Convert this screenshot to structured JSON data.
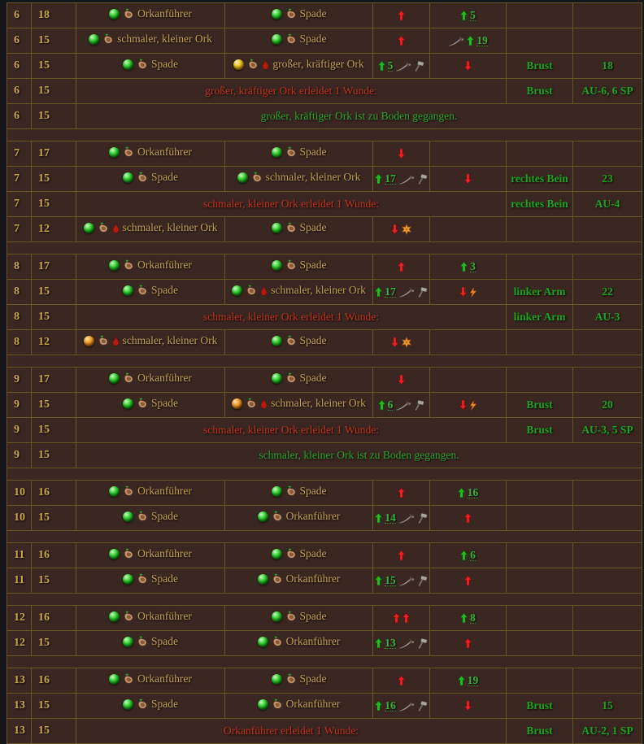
{
  "colors": {
    "page_background": "#14181b",
    "table_background": "#3b2722",
    "grid_border": "#6a5624",
    "gold_text": "#c9a647",
    "red_text": "#c23220",
    "green_text": "#1da51d",
    "roll_number_green": "#36b336"
  },
  "rows": [
    {
      "type": "action",
      "rnd": "6",
      "ini": "18",
      "actor": {
        "orb": "green",
        "wounded": false,
        "name": "Orkanführer"
      },
      "target": {
        "orb": "green",
        "wounded": false,
        "name": "Spade"
      },
      "c5": [
        {
          "icon": "red-up-arrow"
        }
      ],
      "c6": [
        {
          "icon": "green-up-arrow"
        },
        {
          "num": "5"
        }
      ],
      "zone": "",
      "res": ""
    },
    {
      "type": "action",
      "rnd": "6",
      "ini": "15",
      "actor": {
        "orb": "green",
        "wounded": false,
        "name": "schmaler, kleiner Ork"
      },
      "target": {
        "orb": "green",
        "wounded": false,
        "name": "Spade"
      },
      "c5": [
        {
          "icon": "red-up-arrow"
        }
      ],
      "c6": [
        {
          "icon": "sword"
        },
        {
          "icon": "green-up-arrow"
        },
        {
          "num": "19"
        }
      ],
      "zone": "",
      "res": ""
    },
    {
      "type": "action",
      "rnd": "6",
      "ini": "15",
      "actor": {
        "orb": "green",
        "wounded": false,
        "name": "Spade"
      },
      "target": {
        "orb": "yellow",
        "wounded": true,
        "name": "großer, kräftiger Ork"
      },
      "c5": [
        {
          "icon": "green-up-arrow"
        },
        {
          "num": "5"
        },
        {
          "icon": "sword"
        },
        {
          "icon": "hammer"
        }
      ],
      "c6": [
        {
          "icon": "red-down-arrow"
        }
      ],
      "zone": "Brust",
      "res": "18"
    },
    {
      "type": "wound",
      "rnd": "6",
      "ini": "15",
      "text": "großer, kräftiger Ork erleidet 1 Wunde:",
      "zone": "Brust",
      "res": "AU-6, 6 SP"
    },
    {
      "type": "info",
      "rnd": "6",
      "ini": "15",
      "text": "großer, kräftiger Ork ist zu Boden gegangen."
    },
    {
      "type": "gap"
    },
    {
      "type": "action",
      "rnd": "7",
      "ini": "17",
      "actor": {
        "orb": "green",
        "wounded": false,
        "name": "Orkanführer"
      },
      "target": {
        "orb": "green",
        "wounded": false,
        "name": "Spade"
      },
      "c5": [
        {
          "icon": "red-down-arrow"
        }
      ],
      "c6": [],
      "zone": "",
      "res": ""
    },
    {
      "type": "action",
      "rnd": "7",
      "ini": "15",
      "actor": {
        "orb": "green",
        "wounded": false,
        "name": "Spade"
      },
      "target": {
        "orb": "green",
        "wounded": false,
        "name": "schmaler, kleiner Ork"
      },
      "c5": [
        {
          "icon": "green-up-arrow"
        },
        {
          "num": "17"
        },
        {
          "icon": "sword"
        },
        {
          "icon": "hammer"
        }
      ],
      "c6": [
        {
          "icon": "red-down-arrow"
        }
      ],
      "zone": "rechtes Bein",
      "res": "23"
    },
    {
      "type": "wound",
      "rnd": "7",
      "ini": "15",
      "text": "schmaler, kleiner Ork erleidet 1 Wunde:",
      "zone": "rechtes Bein",
      "res": "AU-4"
    },
    {
      "type": "action",
      "rnd": "7",
      "ini": "12",
      "actor": {
        "orb": "green",
        "wounded": true,
        "name": "schmaler, kleiner Ork"
      },
      "target": {
        "orb": "green",
        "wounded": false,
        "name": "Spade"
      },
      "c5": [
        {
          "icon": "red-down-arrow"
        },
        {
          "icon": "fumble-star"
        }
      ],
      "c6": [],
      "zone": "",
      "res": ""
    },
    {
      "type": "gap"
    },
    {
      "type": "action",
      "rnd": "8",
      "ini": "17",
      "actor": {
        "orb": "green",
        "wounded": false,
        "name": "Orkanführer"
      },
      "target": {
        "orb": "green",
        "wounded": false,
        "name": "Spade"
      },
      "c5": [
        {
          "icon": "red-up-arrow"
        }
      ],
      "c6": [
        {
          "icon": "green-up-arrow"
        },
        {
          "num": "3"
        }
      ],
      "zone": "",
      "res": ""
    },
    {
      "type": "action",
      "rnd": "8",
      "ini": "15",
      "actor": {
        "orb": "green",
        "wounded": false,
        "name": "Spade"
      },
      "target": {
        "orb": "green",
        "wounded": true,
        "name": "schmaler, kleiner Ork"
      },
      "c5": [
        {
          "icon": "green-up-arrow"
        },
        {
          "num": "17"
        },
        {
          "icon": "sword"
        },
        {
          "icon": "hammer"
        }
      ],
      "c6": [
        {
          "icon": "red-down-arrow"
        },
        {
          "icon": "lightning"
        }
      ],
      "zone": "linker Arm",
      "res": "22"
    },
    {
      "type": "wound",
      "rnd": "8",
      "ini": "15",
      "text": "schmaler, kleiner Ork erleidet 1 Wunde:",
      "zone": "linker Arm",
      "res": "AU-3"
    },
    {
      "type": "action",
      "rnd": "8",
      "ini": "12",
      "actor": {
        "orb": "orange",
        "wounded": true,
        "name": "schmaler, kleiner Ork"
      },
      "target": {
        "orb": "green",
        "wounded": false,
        "name": "Spade"
      },
      "c5": [
        {
          "icon": "red-down-arrow"
        },
        {
          "icon": "fumble-star"
        }
      ],
      "c6": [],
      "zone": "",
      "res": ""
    },
    {
      "type": "gap"
    },
    {
      "type": "action",
      "rnd": "9",
      "ini": "17",
      "actor": {
        "orb": "green",
        "wounded": false,
        "name": "Orkanführer"
      },
      "target": {
        "orb": "green",
        "wounded": false,
        "name": "Spade"
      },
      "c5": [
        {
          "icon": "red-down-arrow"
        }
      ],
      "c6": [],
      "zone": "",
      "res": ""
    },
    {
      "type": "action",
      "rnd": "9",
      "ini": "15",
      "actor": {
        "orb": "green",
        "wounded": false,
        "name": "Spade"
      },
      "target": {
        "orb": "orange",
        "wounded": true,
        "name": "schmaler, kleiner Ork"
      },
      "c5": [
        {
          "icon": "green-up-arrow"
        },
        {
          "num": "6"
        },
        {
          "icon": "sword"
        },
        {
          "icon": "hammer"
        }
      ],
      "c6": [
        {
          "icon": "red-down-arrow"
        },
        {
          "icon": "lightning"
        }
      ],
      "zone": "Brust",
      "res": "20"
    },
    {
      "type": "wound",
      "rnd": "9",
      "ini": "15",
      "text": "schmaler, kleiner Ork erleidet 1 Wunde:",
      "zone": "Brust",
      "res": "AU-3, 5 SP"
    },
    {
      "type": "info",
      "rnd": "9",
      "ini": "15",
      "text": "schmaler, kleiner Ork ist zu Boden gegangen."
    },
    {
      "type": "gap"
    },
    {
      "type": "action",
      "rnd": "10",
      "ini": "16",
      "actor": {
        "orb": "green",
        "wounded": false,
        "name": "Orkanführer"
      },
      "target": {
        "orb": "green",
        "wounded": false,
        "name": "Spade"
      },
      "c5": [
        {
          "icon": "red-up-arrow"
        }
      ],
      "c6": [
        {
          "icon": "green-up-arrow"
        },
        {
          "num": "16"
        }
      ],
      "zone": "",
      "res": ""
    },
    {
      "type": "action",
      "rnd": "10",
      "ini": "15",
      "actor": {
        "orb": "green",
        "wounded": false,
        "name": "Spade"
      },
      "target": {
        "orb": "green",
        "wounded": false,
        "name": "Orkanführer"
      },
      "c5": [
        {
          "icon": "green-up-arrow"
        },
        {
          "num": "14"
        },
        {
          "icon": "sword"
        },
        {
          "icon": "hammer"
        }
      ],
      "c6": [
        {
          "icon": "red-up-arrow"
        }
      ],
      "zone": "",
      "res": ""
    },
    {
      "type": "gap"
    },
    {
      "type": "action",
      "rnd": "11",
      "ini": "16",
      "actor": {
        "orb": "green",
        "wounded": false,
        "name": "Orkanführer"
      },
      "target": {
        "orb": "green",
        "wounded": false,
        "name": "Spade"
      },
      "c5": [
        {
          "icon": "red-up-arrow"
        }
      ],
      "c6": [
        {
          "icon": "green-up-arrow"
        },
        {
          "num": "6"
        }
      ],
      "zone": "",
      "res": ""
    },
    {
      "type": "action",
      "rnd": "11",
      "ini": "15",
      "actor": {
        "orb": "green",
        "wounded": false,
        "name": "Spade"
      },
      "target": {
        "orb": "green",
        "wounded": false,
        "name": "Orkanführer"
      },
      "c5": [
        {
          "icon": "green-up-arrow"
        },
        {
          "num": "15"
        },
        {
          "icon": "sword"
        },
        {
          "icon": "hammer"
        }
      ],
      "c6": [
        {
          "icon": "red-up-arrow"
        }
      ],
      "zone": "",
      "res": ""
    },
    {
      "type": "gap"
    },
    {
      "type": "action",
      "rnd": "12",
      "ini": "16",
      "actor": {
        "orb": "green",
        "wounded": false,
        "name": "Orkanführer"
      },
      "target": {
        "orb": "green",
        "wounded": false,
        "name": "Spade"
      },
      "c5": [
        {
          "icon": "red-up-arrow"
        },
        {
          "icon": "red-up-arrow"
        }
      ],
      "c6": [
        {
          "icon": "green-up-arrow"
        },
        {
          "num": "8"
        }
      ],
      "zone": "",
      "res": ""
    },
    {
      "type": "action",
      "rnd": "12",
      "ini": "15",
      "actor": {
        "orb": "green",
        "wounded": false,
        "name": "Spade"
      },
      "target": {
        "orb": "green",
        "wounded": false,
        "name": "Orkanführer"
      },
      "c5": [
        {
          "icon": "green-up-arrow"
        },
        {
          "num": "13"
        },
        {
          "icon": "sword"
        },
        {
          "icon": "hammer"
        }
      ],
      "c6": [
        {
          "icon": "red-up-arrow"
        }
      ],
      "zone": "",
      "res": ""
    },
    {
      "type": "gap"
    },
    {
      "type": "action",
      "rnd": "13",
      "ini": "16",
      "actor": {
        "orb": "green",
        "wounded": false,
        "name": "Orkanführer"
      },
      "target": {
        "orb": "green",
        "wounded": false,
        "name": "Spade"
      },
      "c5": [
        {
          "icon": "red-up-arrow"
        }
      ],
      "c6": [
        {
          "icon": "green-up-arrow"
        },
        {
          "num": "19"
        }
      ],
      "zone": "",
      "res": ""
    },
    {
      "type": "action",
      "rnd": "13",
      "ini": "15",
      "actor": {
        "orb": "green",
        "wounded": false,
        "name": "Spade"
      },
      "target": {
        "orb": "green",
        "wounded": false,
        "name": "Orkanführer"
      },
      "c5": [
        {
          "icon": "green-up-arrow"
        },
        {
          "num": "16"
        },
        {
          "icon": "sword"
        },
        {
          "icon": "hammer"
        }
      ],
      "c6": [
        {
          "icon": "red-down-arrow"
        }
      ],
      "zone": "Brust",
      "res": "15"
    },
    {
      "type": "wound",
      "rnd": "13",
      "ini": "15",
      "text": "Orkanführer erleidet 1 Wunde:",
      "zone": "Brust",
      "res": "AU-2, 1 SP"
    }
  ]
}
